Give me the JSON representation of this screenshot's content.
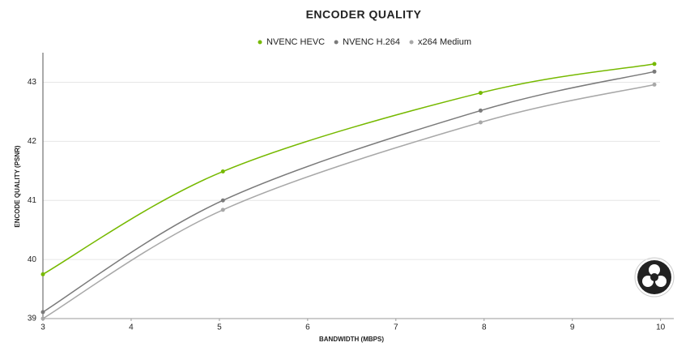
{
  "chart_data": {
    "type": "line",
    "title": "ENCODER QUALITY",
    "x_label": "BANDWIDTH (MBPS)",
    "y_label": "ENCODE QUALITY (PSNR)",
    "x": [
      3,
      5.04,
      7.96,
      9.93
    ],
    "series": [
      {
        "name": "NVENC HEVC",
        "color": "#76b900",
        "values": [
          39.75,
          41.49,
          42.82,
          43.31
        ]
      },
      {
        "name": "NVENC H.264",
        "color": "#7a7a7a",
        "values": [
          39.11,
          41.0,
          42.52,
          43.18
        ]
      },
      {
        "name": "x264 Medium",
        "color": "#a8a8a8",
        "values": [
          39.0,
          40.84,
          42.32,
          42.96
        ]
      }
    ],
    "xlim": [
      3,
      10.15
    ],
    "xticks": [
      3,
      4,
      5,
      6,
      7,
      8,
      9,
      10
    ],
    "ylim": [
      39,
      43.5
    ],
    "yticks": [
      39,
      40,
      41,
      42,
      43
    ],
    "grid": true,
    "legend": "top"
  }
}
